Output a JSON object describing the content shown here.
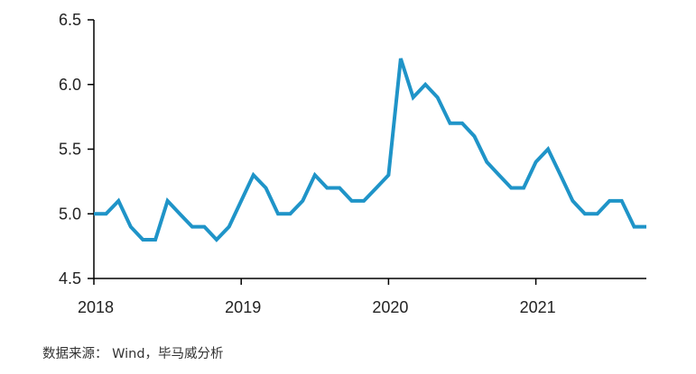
{
  "chart_data": {
    "type": "line",
    "xlabel": "",
    "ylabel": "",
    "xlim": [
      2018,
      2021.75
    ],
    "ylim": [
      4.5,
      6.5
    ],
    "yticks": [
      "4.5",
      "5.0",
      "5.5",
      "6.0",
      "6.5"
    ],
    "xticks": [
      "2018",
      "2019",
      "2020",
      "2021"
    ],
    "grid": false,
    "legend": "none",
    "series": [
      {
        "color": "#1f94c8",
        "x": [
          2018.0,
          2018.083,
          2018.167,
          2018.25,
          2018.333,
          2018.417,
          2018.5,
          2018.583,
          2018.667,
          2018.75,
          2018.833,
          2018.917,
          2019.0,
          2019.083,
          2019.167,
          2019.25,
          2019.333,
          2019.417,
          2019.5,
          2019.583,
          2019.667,
          2019.75,
          2019.833,
          2019.917,
          2020.0,
          2020.083,
          2020.167,
          2020.25,
          2020.333,
          2020.417,
          2020.5,
          2020.583,
          2020.667,
          2020.75,
          2020.833,
          2020.917,
          2021.0,
          2021.083,
          2021.167,
          2021.25,
          2021.333,
          2021.417,
          2021.5,
          2021.583,
          2021.667,
          2021.75
        ],
        "y": [
          5.0,
          5.0,
          5.1,
          4.9,
          4.8,
          4.8,
          5.1,
          5.0,
          4.9,
          4.9,
          4.8,
          4.9,
          5.1,
          5.3,
          5.2,
          5.0,
          5.0,
          5.1,
          5.3,
          5.2,
          5.2,
          5.1,
          5.1,
          5.2,
          5.3,
          6.2,
          5.9,
          6.0,
          5.9,
          5.7,
          5.7,
          5.6,
          5.4,
          5.3,
          5.2,
          5.2,
          5.4,
          5.5,
          5.3,
          5.1,
          5.0,
          5.0,
          5.1,
          5.1,
          4.9,
          4.9
        ]
      }
    ]
  },
  "source": "数据来源： Wind，毕马威分析"
}
